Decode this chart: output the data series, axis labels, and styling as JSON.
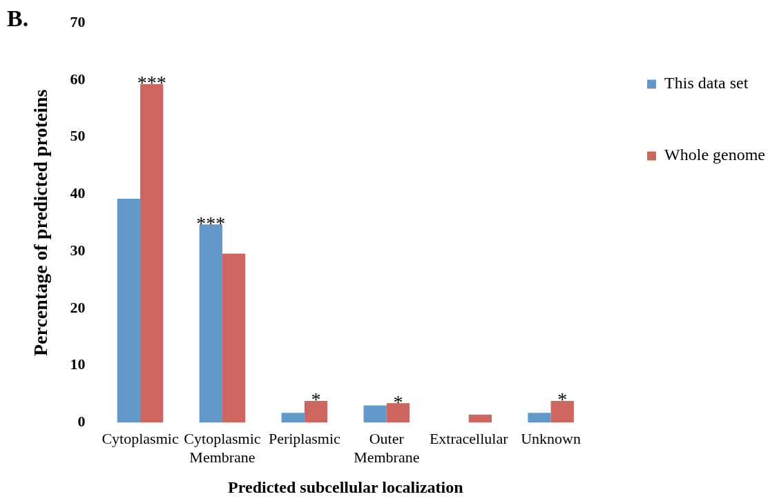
{
  "chart_data": {
    "type": "bar",
    "xlabel": "Predicted subcellular localization",
    "ylabel": "Percentage of predicted proteins",
    "categories": [
      "Cytoplasmic",
      "Cytoplasmic\nMembrane",
      "Periplasmic",
      "Outer\nMembrane",
      "Extracellular",
      "Unknown"
    ],
    "series": [
      {
        "name": "This data set",
        "color": "#6399c9",
        "values": [
          39.2,
          34.7,
          1.7,
          3.0,
          null,
          1.7
        ]
      },
      {
        "name": "Whole genome",
        "color": "#cd665f",
        "values": [
          59.3,
          29.6,
          3.8,
          3.4,
          1.4,
          3.8
        ]
      }
    ],
    "ylim": [
      0,
      70
    ],
    "yticks": [
      0,
      10,
      20,
      30,
      40,
      50,
      60,
      70
    ],
    "grid": false,
    "legend": "right",
    "annotations": [
      "B.",
      {
        "text": "***",
        "x": "Cytoplasmic",
        "y": 59.3
      },
      {
        "text": "***",
        "x": "Cytoplasmic\nMembrane",
        "y": 34.7
      },
      {
        "text": "*",
        "x": "Periplasmic",
        "y": 3.8
      },
      {
        "text": "*",
        "x": "Outer\nMembrane",
        "y": 3.4
      },
      {
        "text": "*",
        "x": "Unknown",
        "y": 3.8
      }
    ]
  }
}
